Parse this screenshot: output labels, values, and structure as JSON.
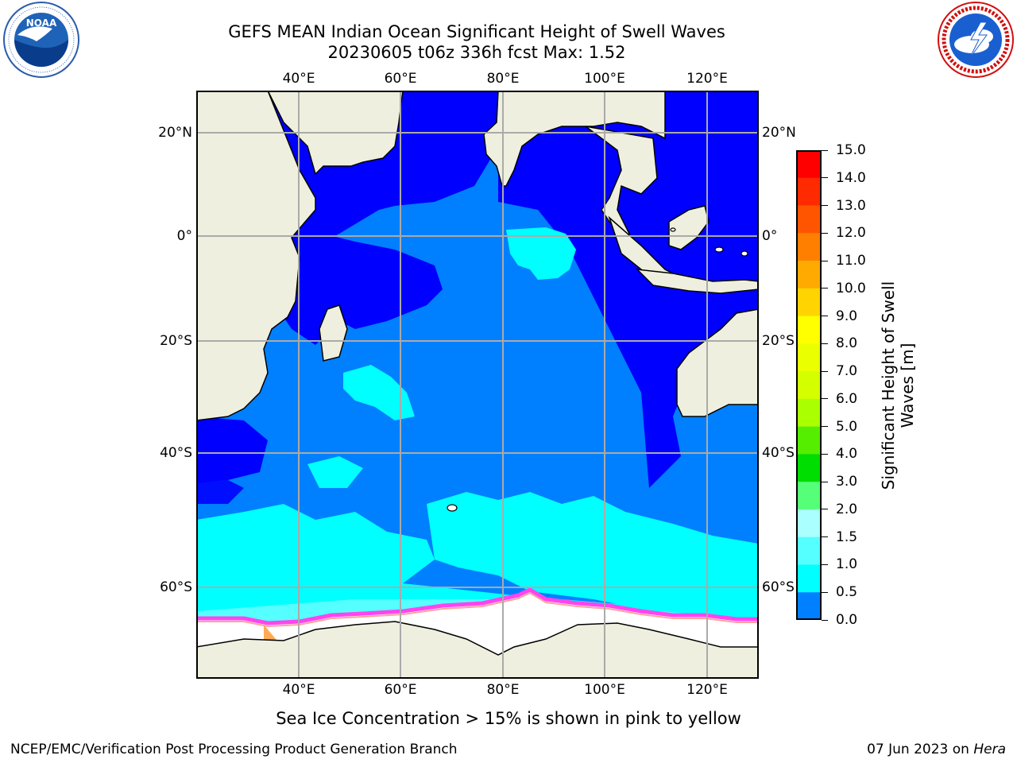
{
  "title": {
    "line1": "GEFS MEAN Indian Ocean Significant Height of Swell Waves",
    "line2": "20230605 t06z 336h fcst   Max: 1.52"
  },
  "logos": {
    "left": {
      "name": "noaa-logo",
      "text": "NOAA",
      "ring_text": "NATIONAL OCEANIC AND ATMOSPHERIC ADMINISTRATION · U.S. DEPARTMENT OF COMMERCE"
    },
    "right": {
      "name": "national-weather-service-logo",
      "ring_text": "NATIONAL WEATHER SERVICE"
    }
  },
  "map": {
    "lon_ticks": [
      "40°E",
      "60°E",
      "80°E",
      "100°E",
      "120°E"
    ],
    "lat_ticks": [
      "20°N",
      "0°",
      "20°S",
      "40°S",
      "60°S"
    ],
    "colors": {
      "land": "#efefdf",
      "sea_ice": "#ffffff",
      "ice_edge": "#ff44ee"
    }
  },
  "colorbar": {
    "title": "Significant Height of Swell Waves [m]",
    "labels": [
      "15.0",
      "14.0",
      "13.0",
      "12.0",
      "11.0",
      "10.0",
      "9.0",
      "8.0",
      "7.0",
      "6.0",
      "5.0",
      "4.0",
      "3.0",
      "2.0",
      "1.5",
      "1.0",
      "0.5",
      "0.0"
    ],
    "colors_top_to_bottom": [
      "#ff0000",
      "#ff2a00",
      "#ff5500",
      "#ff7f00",
      "#ffaa00",
      "#ffd400",
      "#ffff00",
      "#eaff00",
      "#d4ff00",
      "#aaff00",
      "#55ee00",
      "#00dd00",
      "#55ff77",
      "#aaffff",
      "#55ffff",
      "#00ffff",
      "#0080ff",
      "#0000ff"
    ]
  },
  "sea_ice_note": "Sea Ice Concentration > 15% is shown in pink to yellow",
  "footer": {
    "left": "NCEP/EMC/Verification Post Processing Product Generation Branch",
    "right_date": "07 Jun 2023 on",
    "right_machine": "Hera"
  }
}
